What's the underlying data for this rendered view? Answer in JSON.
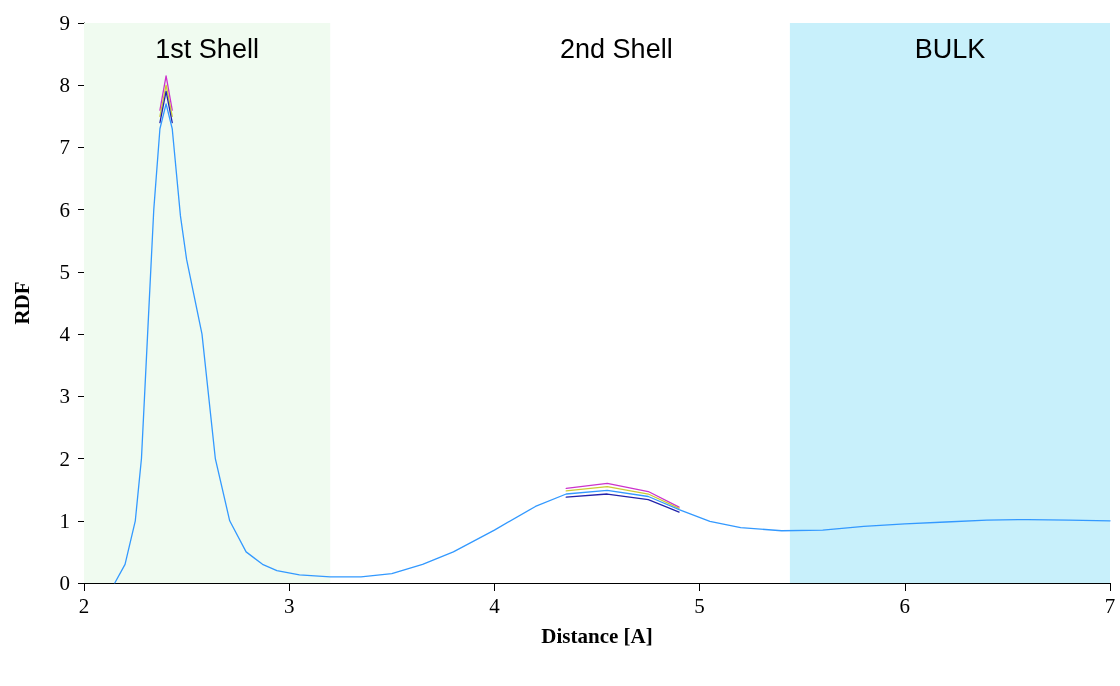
{
  "chart_data": {
    "type": "line",
    "xlabel": "Distance [A]",
    "ylabel": "RDF",
    "x": [
      2.15,
      2.2,
      2.25,
      2.28,
      2.31,
      2.34,
      2.37,
      2.4,
      2.43,
      2.47,
      2.5,
      2.575,
      2.64,
      2.71,
      2.79,
      2.87,
      2.94,
      3.05,
      3.2,
      3.35,
      3.5,
      3.65,
      3.8,
      4.0,
      4.2,
      4.35,
      4.55,
      4.75,
      4.9,
      5.05,
      5.2,
      5.4,
      5.6,
      5.8,
      6.0,
      6.2,
      6.4,
      6.6,
      6.8,
      7.0
    ],
    "series": [
      {
        "color": "#cc33cc",
        "values": [
          null,
          null,
          null,
          null,
          null,
          null,
          7.6,
          8.15,
          7.6,
          null,
          null,
          null,
          null,
          null,
          null,
          null,
          null,
          null,
          null,
          null,
          null,
          null,
          null,
          null,
          null,
          1.52,
          1.6,
          1.47,
          1.22,
          null,
          null,
          null,
          null,
          null,
          null,
          null,
          null,
          null,
          null,
          null
        ]
      },
      {
        "color": "#cccc33",
        "values": [
          null,
          null,
          null,
          null,
          null,
          null,
          7.5,
          8.0,
          7.5,
          null,
          null,
          null,
          null,
          null,
          null,
          null,
          null,
          null,
          null,
          null,
          null,
          null,
          null,
          null,
          null,
          1.48,
          1.55,
          1.43,
          1.2,
          null,
          null,
          null,
          null,
          null,
          null,
          null,
          null,
          null,
          null,
          null
        ]
      },
      {
        "color": "#2222aa",
        "values": [
          null,
          null,
          null,
          null,
          null,
          null,
          7.4,
          7.9,
          7.4,
          null,
          null,
          null,
          null,
          null,
          null,
          null,
          null,
          null,
          null,
          null,
          null,
          null,
          null,
          null,
          null,
          1.38,
          1.43,
          1.34,
          1.14,
          null,
          null,
          null,
          null,
          null,
          null,
          null,
          null,
          null,
          null,
          null
        ]
      },
      {
        "color": "#3399ff",
        "values": [
          0,
          0.3,
          1.0,
          2.0,
          4.0,
          6.0,
          7.3,
          7.7,
          7.3,
          5.9,
          5.2,
          4.0,
          2.0,
          1.0,
          0.5,
          0.3,
          0.2,
          0.13,
          0.1,
          0.1,
          0.15,
          0.3,
          0.5,
          0.85,
          1.23,
          1.43,
          1.49,
          1.39,
          1.18,
          0.99,
          0.89,
          0.84,
          0.85,
          0.91,
          0.95,
          0.98,
          1.01,
          1.02,
          1.01,
          1.0
        ]
      }
    ],
    "xlim": [
      2,
      7
    ],
    "xticks": [
      2,
      3,
      4,
      5,
      6,
      7
    ],
    "ylim": [
      0,
      9
    ],
    "yticks": [
      0,
      1,
      2,
      3,
      4,
      5,
      6,
      7,
      8,
      9
    ],
    "grid": false,
    "marker": "none",
    "line_style": "solid",
    "bands": [
      {
        "axis": "x",
        "from": 2,
        "to": 3.2,
        "label": "1st Shell",
        "color": "#f0fbf0"
      },
      {
        "axis": "x",
        "from": 5.44,
        "to": 7,
        "label": "BULK",
        "color": "#c8f0fb"
      }
    ],
    "annotations": [
      "2nd Shell"
    ]
  }
}
